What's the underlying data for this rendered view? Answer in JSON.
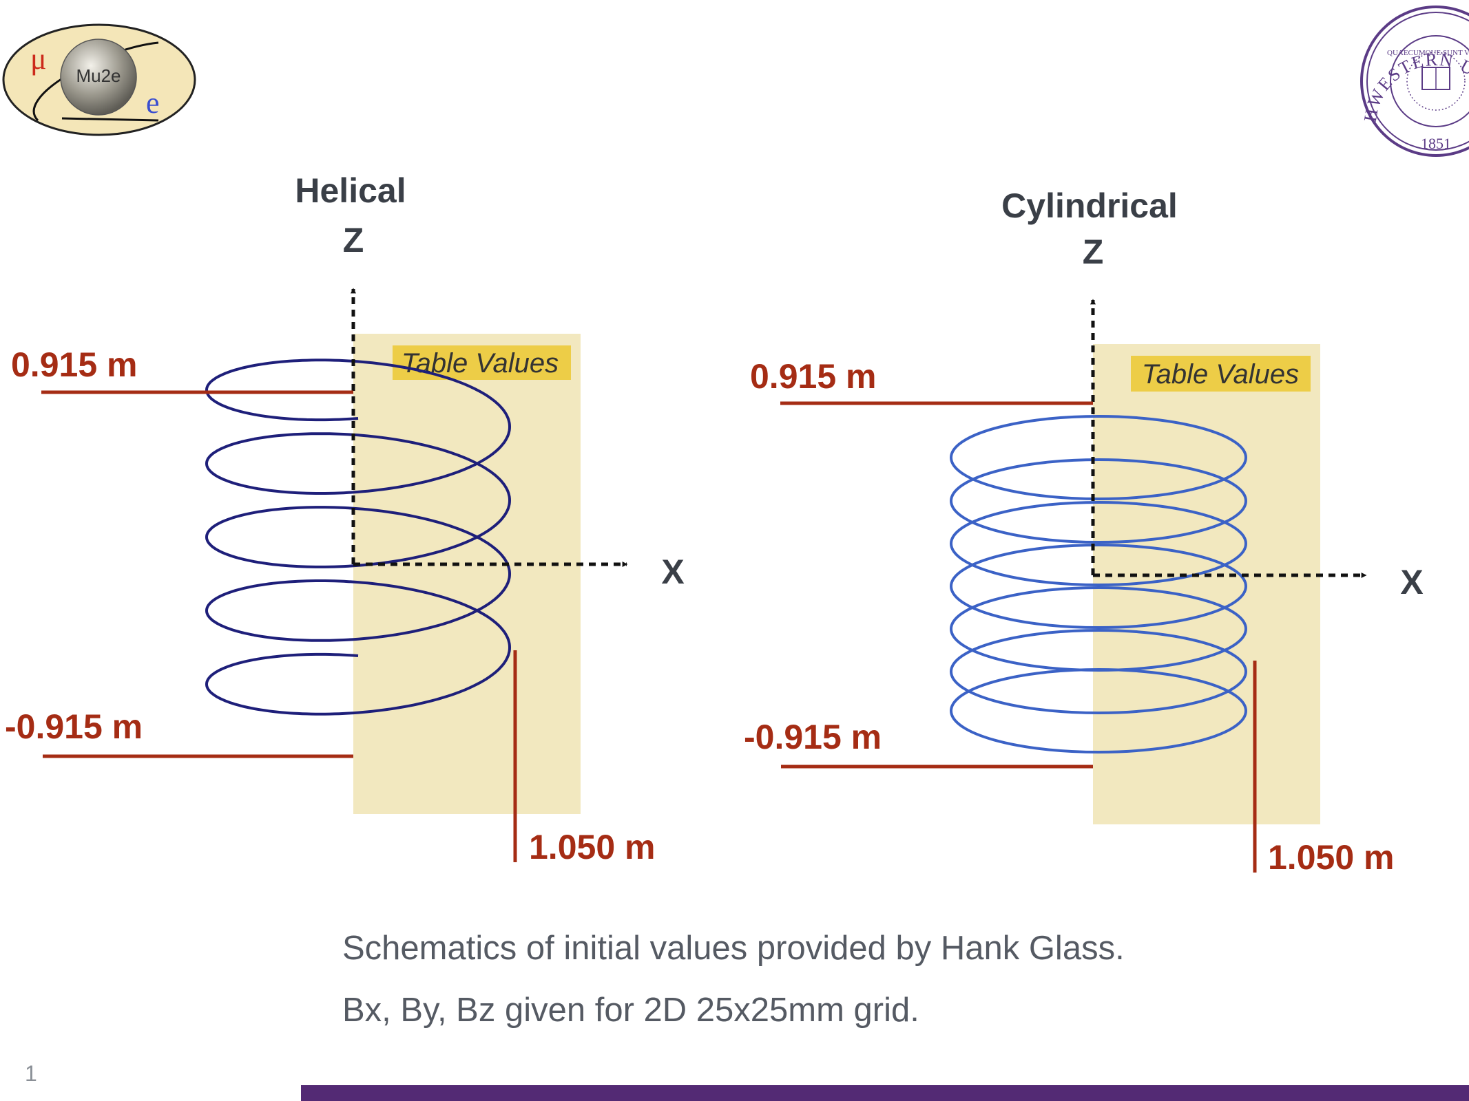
{
  "logos": {
    "mu2e": {
      "main_text": "Mu2e",
      "mu_glyph": "μ",
      "e_glyph": "e"
    },
    "northwestern": {
      "ring_text": "NORTHWESTERN UNIVERSITY",
      "motto": "QUAECUMQUE SUNT VERA",
      "year": "1851",
      "colors": {
        "purple": "#5b3b86"
      }
    }
  },
  "diagrams": [
    {
      "title": "Helical",
      "z_axis_label": "Z",
      "x_axis_label": "X",
      "table_label": "Table Values",
      "top_label": "0.915 m",
      "bottom_label": "-0.915 m",
      "radius_label": "1.050 m",
      "coil_type": "helical",
      "coil_color": "#1e1f7a"
    },
    {
      "title": "Cylindrical",
      "z_axis_label": "Z",
      "x_axis_label": "X",
      "table_label": "Table Values",
      "top_label": "0.915 m",
      "bottom_label": "-0.915 m",
      "radius_label": "1.050 m",
      "coil_type": "cylindrical",
      "coil_color": "#3b62c6"
    }
  ],
  "captions": [
    "Schematics of initial values provided by Hank Glass.",
    "Bx, By, Bz given for 2D 25x25mm grid."
  ],
  "page_number": "1",
  "colors": {
    "dimension_red": "#a52c14",
    "table_region": "#f2e8bf",
    "table_label_bg": "#edcd47",
    "title_gray": "#3a3f47",
    "footer_purple": "#532a74"
  }
}
